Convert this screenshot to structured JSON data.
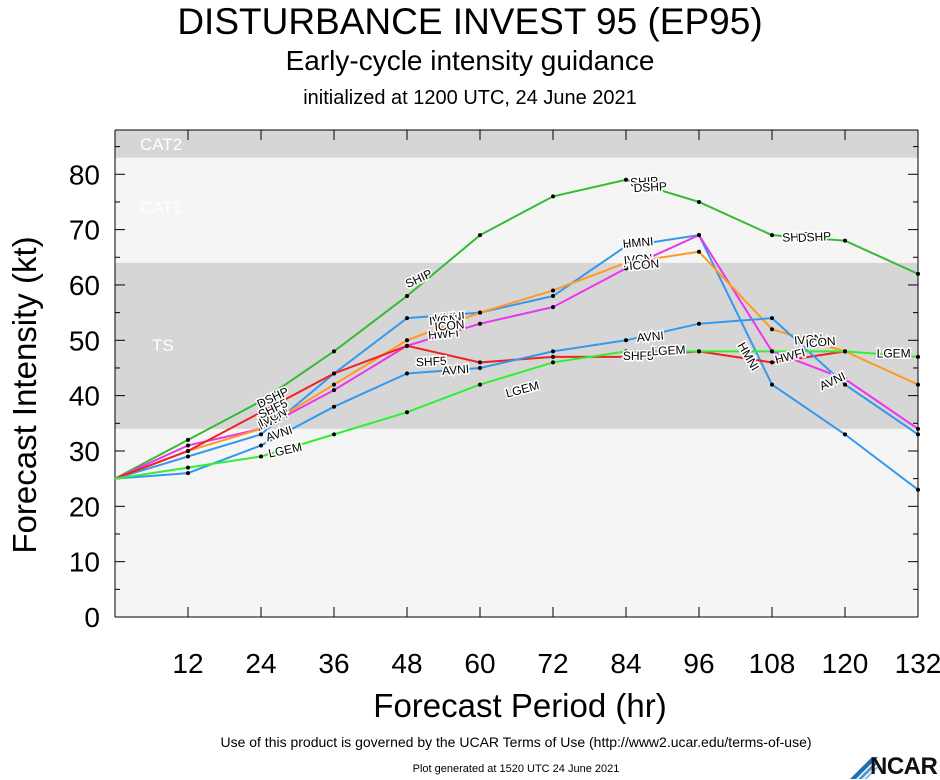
{
  "header": {
    "title": "DISTURBANCE INVEST 95 (EP95)",
    "subtitle": "Early-cycle intensity guidance",
    "initialized": "initialized at 1200 UTC, 24 June 2021"
  },
  "footer": {
    "terms": "Use of this product is governed by the UCAR Terms of Use (http://www2.ucar.edu/terms-of-use)",
    "generated": "Plot generated at 1520 UTC   24 June 2021",
    "logo_text": "NCAR",
    "logo_icon": "ncar-logo-icon"
  },
  "chart_data": {
    "type": "line",
    "xlabel": "Forecast Period (hr)",
    "ylabel": "Forecast Intensity (kt)",
    "xlim": [
      0,
      132
    ],
    "ylim": [
      0,
      88
    ],
    "xticks": [
      12,
      24,
      36,
      48,
      60,
      72,
      84,
      96,
      108,
      120,
      132
    ],
    "yticks": [
      0,
      10,
      20,
      30,
      40,
      50,
      60,
      70,
      80
    ],
    "grid": false,
    "bands": [
      {
        "label": "TS",
        "from": 34,
        "to": 64,
        "color": "#d6d6d6"
      },
      {
        "label": "CAT1",
        "from": 64,
        "to": 83,
        "color": "#f5f5f5"
      },
      {
        "label": "CAT2",
        "from": 83,
        "to": 96,
        "color": "#d6d6d6"
      }
    ],
    "series": [
      {
        "name": "SHIP",
        "color": "#33bb33",
        "x": [
          0,
          12,
          24,
          36,
          48,
          60,
          72,
          84,
          96,
          108,
          120,
          132
        ],
        "values": [
          25,
          32,
          39,
          48,
          58,
          69,
          76,
          79,
          75,
          69,
          68,
          62
        ],
        "labels": [
          {
            "text": "DSHP",
            "x": 26,
            "y": 39.5,
            "rot": -25
          },
          {
            "text": "SHIP",
            "x": 50,
            "y": 61,
            "rot": -25
          },
          {
            "text": "SHIP",
            "x": 87,
            "y": 78.5,
            "rot": -3
          },
          {
            "text": "DSHP",
            "x": 88,
            "y": 77.5,
            "rot": -3
          },
          {
            "text": "SHIP",
            "x": 112,
            "y": 68.5,
            "rot": -3
          },
          {
            "text": "DSHP",
            "x": 115,
            "y": 68.5,
            "rot": -3
          }
        ]
      },
      {
        "name": "HMNI",
        "color": "#3399ee",
        "x": [
          0,
          12,
          24,
          36,
          48,
          60,
          72,
          84,
          96,
          108,
          120,
          132
        ],
        "values": [
          25,
          29,
          33,
          44,
          54,
          55,
          58,
          67,
          69,
          42,
          33,
          23
        ],
        "labels": [
          {
            "text": "HMNI",
            "x": 26,
            "y": 36.5,
            "rot": -25
          },
          {
            "text": "HMNI",
            "x": 55,
            "y": 54,
            "rot": -5
          },
          {
            "text": "HMNI",
            "x": 86,
            "y": 67.5,
            "rot": -5
          },
          {
            "text": "HMNI",
            "x": 104,
            "y": 47,
            "rot": 60
          }
        ]
      },
      {
        "name": "HWFI",
        "color": "#ee33ee",
        "x": [
          0,
          12,
          24,
          36,
          48,
          60,
          72,
          84,
          96,
          108,
          120,
          132
        ],
        "values": [
          25,
          31,
          34,
          41,
          49,
          53,
          56,
          63,
          69,
          48,
          43,
          34
        ],
        "labels": [
          {
            "text": "HWFI",
            "x": 26,
            "y": 35.5,
            "rot": -25
          },
          {
            "text": "HWFI",
            "x": 54,
            "y": 51,
            "rot": -5
          },
          {
            "text": "HWFI",
            "x": 86,
            "y": 64,
            "rot": -5
          },
          {
            "text": "HWFI",
            "x": 111,
            "y": 47,
            "rot": -15
          }
        ]
      },
      {
        "name": "IVCN",
        "color": "#ff9922",
        "x": [
          0,
          12,
          24,
          36,
          48,
          60,
          72,
          84,
          96,
          108,
          120,
          132
        ],
        "values": [
          25,
          30,
          34,
          42,
          50,
          55,
          59,
          64,
          66,
          52,
          48,
          42
        ],
        "labels": [
          {
            "text": "IVCN",
            "x": 26,
            "y": 36,
            "rot": -25
          },
          {
            "text": "IVCN",
            "x": 54,
            "y": 53.5,
            "rot": -5
          },
          {
            "text": "IVCN",
            "x": 86,
            "y": 64.5,
            "rot": -5
          },
          {
            "text": "IVCN",
            "x": 114,
            "y": 50,
            "rot": -5
          }
        ]
      },
      {
        "name": "ICON",
        "color": "#ff9922",
        "x": [],
        "values": [],
        "labels": [
          {
            "text": "ICON",
            "x": 55,
            "y": 52.5,
            "rot": -5
          },
          {
            "text": "ICON",
            "x": 87,
            "y": 63.5,
            "rot": -5
          },
          {
            "text": "ICON",
            "x": 116,
            "y": 49.5,
            "rot": -5
          }
        ]
      },
      {
        "name": "SHF5",
        "color": "#ee2222",
        "x": [
          0,
          12,
          24,
          36,
          48,
          60,
          72,
          84,
          96,
          108,
          120
        ],
        "values": [
          25,
          30,
          37,
          44,
          49,
          46,
          47,
          47,
          48,
          46,
          48
        ],
        "labels": [
          {
            "text": "SHF5",
            "x": 26,
            "y": 37.5,
            "rot": -25
          },
          {
            "text": "SHF5",
            "x": 52,
            "y": 46,
            "rot": -3
          },
          {
            "text": "SHF5",
            "x": 86,
            "y": 47,
            "rot": 0
          }
        ]
      },
      {
        "name": "AVNI",
        "color": "#3399ee",
        "x": [
          0,
          12,
          24,
          36,
          48,
          60,
          72,
          84,
          96,
          108,
          120,
          132
        ],
        "values": [
          25,
          26,
          31,
          38,
          44,
          45,
          48,
          50,
          53,
          54,
          42,
          33
        ],
        "labels": [
          {
            "text": "AVNI",
            "x": 27,
            "y": 33,
            "rot": -18
          },
          {
            "text": "AVNI",
            "x": 56,
            "y": 44.5,
            "rot": -5
          },
          {
            "text": "AVNI",
            "x": 88,
            "y": 50.5,
            "rot": -5
          },
          {
            "text": "AVNI",
            "x": 118,
            "y": 42.5,
            "rot": -25
          }
        ]
      },
      {
        "name": "LGEM",
        "color": "#33ee33",
        "x": [
          0,
          12,
          24,
          36,
          48,
          60,
          72,
          84,
          96,
          108,
          120,
          132
        ],
        "values": [
          25,
          27,
          29,
          33,
          37,
          42,
          46,
          48,
          48,
          48,
          48,
          47
        ],
        "labels": [
          {
            "text": "LGEM",
            "x": 28,
            "y": 30,
            "rot": -12
          },
          {
            "text": "LGEM",
            "x": 67,
            "y": 41,
            "rot": -15
          },
          {
            "text": "LGEM",
            "x": 91,
            "y": 48,
            "rot": -3
          },
          {
            "text": "LGEM",
            "x": 128,
            "y": 47.5,
            "rot": 0
          }
        ]
      }
    ]
  }
}
